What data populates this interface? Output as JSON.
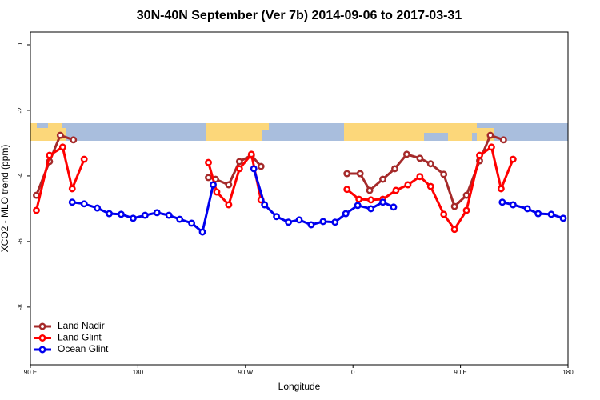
{
  "chart_data": {
    "type": "line",
    "title": "30N-40N September (Ver 7b)   2014-09-06 to 2017-03-31",
    "x_label": "Longitude",
    "y_label": "XCO2 - MLO trend (ppm)",
    "xlim": [
      90,
      540
    ],
    "ylim": [
      -9.76,
      0.39
    ],
    "xticks": [
      {
        "value": 90,
        "label": "90 E"
      },
      180,
      {
        "value": 270,
        "label": "90 W"
      },
      {
        "value": 360,
        "label": "0"
      },
      {
        "value": 450,
        "label": "90 E"
      },
      {
        "value": 540,
        "label": "180"
      }
    ],
    "yticks": [
      0,
      -2,
      -4,
      -6,
      -8
    ],
    "legend": "bottom-left",
    "series": [
      {
        "name": "Land Nadir",
        "color": "#a52a2a",
        "x": [
          95,
          106,
          115,
          126,
          null,
          239,
          245,
          256,
          265,
          275,
          283,
          null,
          355,
          366,
          374,
          385,
          395,
          405,
          416,
          425,
          436,
          445,
          455,
          466,
          475,
          486
        ],
        "values": [
          -4.59,
          -3.56,
          -2.76,
          -2.9,
          null,
          -4.05,
          -4.1,
          -4.27,
          -3.56,
          -3.37,
          -3.71,
          null,
          -3.93,
          -3.93,
          -4.44,
          -4.1,
          -3.78,
          -3.34,
          -3.46,
          -3.63,
          -3.95,
          -4.93,
          -4.59,
          -3.54,
          -2.76,
          -2.9
        ]
      },
      {
        "name": "Land Glint",
        "color": "#ff0000",
        "x": [
          95,
          106,
          117,
          125,
          135,
          null,
          239,
          246,
          256,
          265,
          275,
          283,
          null,
          355,
          365,
          375,
          385,
          396,
          406,
          416,
          425,
          436,
          445,
          455,
          466,
          476,
          484,
          494
        ],
        "values": [
          -5.05,
          -3.37,
          -3.12,
          -4.39,
          -3.49,
          null,
          -3.59,
          -4.49,
          -4.88,
          -3.78,
          -3.34,
          -4.73,
          null,
          -4.41,
          -4.71,
          -4.73,
          -4.71,
          -4.44,
          -4.27,
          -4.02,
          -4.32,
          -5.17,
          -5.63,
          -5.05,
          -3.37,
          -3.12,
          -4.39,
          -3.49
        ]
      },
      {
        "name": "Ocean Glint",
        "color": "#0000ee",
        "x": [
          125,
          135,
          146,
          156,
          166,
          176,
          186,
          196,
          206,
          215,
          225,
          234,
          243,
          null,
          277,
          286,
          296,
          306,
          315,
          325,
          335,
          345,
          354,
          364,
          375,
          385,
          394,
          null,
          485,
          494,
          506,
          515,
          526,
          536
        ],
        "values": [
          -4.8,
          -4.85,
          -4.98,
          -5.15,
          -5.17,
          -5.29,
          -5.2,
          -5.12,
          -5.2,
          -5.32,
          -5.44,
          -5.71,
          -4.27,
          null,
          -3.78,
          -4.88,
          -5.24,
          -5.41,
          -5.34,
          -5.49,
          -5.39,
          -5.41,
          -5.15,
          -4.9,
          -5.0,
          -4.8,
          -4.95,
          null,
          -4.8,
          -4.88,
          -5.0,
          -5.15,
          -5.17,
          -5.29
        ]
      }
    ]
  }
}
